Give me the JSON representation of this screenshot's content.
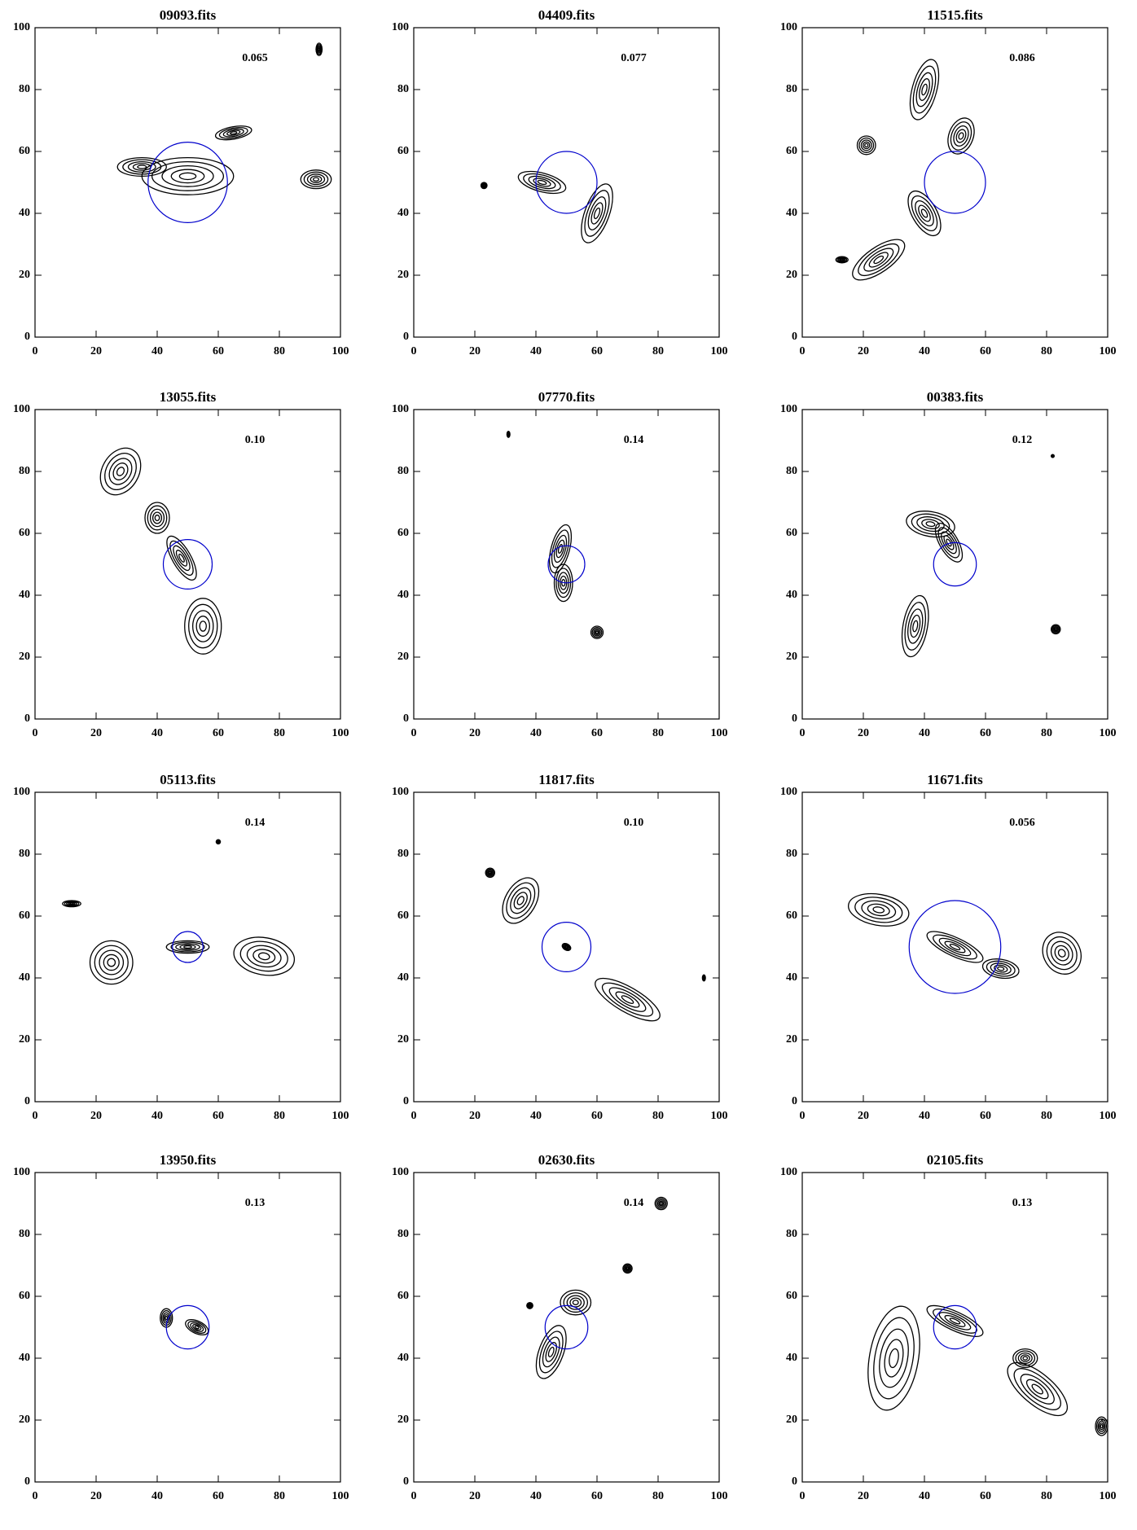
{
  "chart_data": [
    {
      "type": "contour",
      "title": "09093.fits",
      "annotation": "0.065",
      "xlim": [
        0,
        100
      ],
      "ylim": [
        0,
        100
      ],
      "xticks": [
        0,
        20,
        40,
        60,
        80,
        100
      ],
      "yticks": [
        0,
        20,
        40,
        60,
        80,
        100
      ],
      "circle": {
        "x": 50,
        "y": 50,
        "r": 13,
        "color": "#0000cc"
      },
      "components": [
        [
          50,
          52,
          15,
          6,
          0
        ],
        [
          35,
          55,
          8,
          3,
          0
        ],
        [
          65,
          66,
          6,
          2,
          10
        ],
        [
          92,
          51,
          5,
          3,
          0
        ],
        [
          93,
          93,
          1,
          2,
          0
        ]
      ]
    },
    {
      "type": "contour",
      "title": "04409.fits",
      "annotation": "0.077",
      "xlim": [
        0,
        100
      ],
      "ylim": [
        0,
        100
      ],
      "xticks": [
        0,
        20,
        40,
        60,
        80,
        100
      ],
      "yticks": [
        0,
        20,
        40,
        60,
        80,
        100
      ],
      "circle": {
        "x": 50,
        "y": 50,
        "r": 10,
        "color": "#0000cc"
      },
      "components": [
        [
          42,
          50,
          8,
          3,
          -15
        ],
        [
          60,
          40,
          4,
          10,
          -20
        ],
        [
          23,
          49,
          1,
          1,
          0
        ]
      ]
    },
    {
      "type": "contour",
      "title": "11515.fits",
      "annotation": "0.086",
      "xlim": [
        0,
        100
      ],
      "ylim": [
        0,
        100
      ],
      "xticks": [
        0,
        20,
        40,
        60,
        80,
        100
      ],
      "yticks": [
        0,
        20,
        40,
        60,
        80,
        100
      ],
      "circle": {
        "x": 50,
        "y": 50,
        "r": 10,
        "color": "#0000cc"
      },
      "components": [
        [
          40,
          80,
          4,
          10,
          -15
        ],
        [
          52,
          65,
          4,
          6,
          -20
        ],
        [
          40,
          40,
          4,
          8,
          30
        ],
        [
          25,
          25,
          10,
          4,
          35
        ],
        [
          21,
          62,
          3,
          3,
          0
        ],
        [
          13,
          25,
          2,
          1,
          0
        ]
      ]
    },
    {
      "type": "contour",
      "title": "13055.fits",
      "annotation": "0.10",
      "xlim": [
        0,
        100
      ],
      "ylim": [
        0,
        100
      ],
      "xticks": [
        0,
        20,
        40,
        60,
        80,
        100
      ],
      "yticks": [
        0,
        20,
        40,
        60,
        80,
        100
      ],
      "circle": {
        "x": 50,
        "y": 50,
        "r": 8,
        "color": "#0000cc"
      },
      "components": [
        [
          48,
          52,
          3,
          8,
          30
        ],
        [
          40,
          65,
          4,
          5,
          0
        ],
        [
          28,
          80,
          6,
          8,
          -30
        ],
        [
          55,
          30,
          6,
          9,
          0
        ]
      ]
    },
    {
      "type": "contour",
      "title": "07770.fits",
      "annotation": "0.14",
      "xlim": [
        0,
        100
      ],
      "ylim": [
        0,
        100
      ],
      "xticks": [
        0,
        20,
        40,
        60,
        80,
        100
      ],
      "yticks": [
        0,
        20,
        40,
        60,
        80,
        100
      ],
      "circle": {
        "x": 50,
        "y": 50,
        "r": 6,
        "color": "#0000cc"
      },
      "components": [
        [
          48,
          55,
          3,
          8,
          -15
        ],
        [
          49,
          44,
          3,
          6,
          0
        ],
        [
          60,
          28,
          2,
          2,
          0
        ],
        [
          31,
          92,
          0.5,
          1,
          0
        ]
      ]
    },
    {
      "type": "contour",
      "title": "00383.fits",
      "annotation": "0.12",
      "xlim": [
        0,
        100
      ],
      "ylim": [
        0,
        100
      ],
      "xticks": [
        0,
        20,
        40,
        60,
        80,
        100
      ],
      "yticks": [
        0,
        20,
        40,
        60,
        80,
        100
      ],
      "circle": {
        "x": 50,
        "y": 50,
        "r": 7,
        "color": "#0000cc"
      },
      "components": [
        [
          42,
          63,
          8,
          4,
          -10
        ],
        [
          48,
          57,
          3,
          7,
          30
        ],
        [
          37,
          30,
          4,
          10,
          -10
        ],
        [
          83,
          29,
          1.5,
          1.5,
          0
        ],
        [
          82,
          85,
          0.5,
          0.5,
          0
        ]
      ]
    },
    {
      "type": "contour",
      "title": "05113.fits",
      "annotation": "0.14",
      "xlim": [
        0,
        100
      ],
      "ylim": [
        0,
        100
      ],
      "xticks": [
        0,
        20,
        40,
        60,
        80,
        100
      ],
      "yticks": [
        0,
        20,
        40,
        60,
        80,
        100
      ],
      "circle": {
        "x": 50,
        "y": 50,
        "r": 5,
        "color": "#0000cc"
      },
      "components": [
        [
          25,
          45,
          7,
          7,
          0
        ],
        [
          50,
          50,
          7,
          2,
          0
        ],
        [
          75,
          47,
          10,
          6,
          -10
        ],
        [
          12,
          64,
          3,
          1,
          0
        ],
        [
          60,
          84,
          0.7,
          0.7,
          0
        ]
      ]
    },
    {
      "type": "contour",
      "title": "11817.fits",
      "annotation": "0.10",
      "xlim": [
        0,
        100
      ],
      "ylim": [
        0,
        100
      ],
      "xticks": [
        0,
        20,
        40,
        60,
        80,
        100
      ],
      "yticks": [
        0,
        20,
        40,
        60,
        80,
        100
      ],
      "circle": {
        "x": 50,
        "y": 50,
        "r": 8,
        "color": "#0000cc"
      },
      "components": [
        [
          50,
          50,
          1.5,
          1,
          -30
        ],
        [
          35,
          65,
          5,
          8,
          -30
        ],
        [
          70,
          33,
          12,
          4,
          -30
        ],
        [
          25,
          74,
          1.5,
          1.5,
          0
        ],
        [
          95,
          40,
          0.5,
          1,
          0
        ]
      ]
    },
    {
      "type": "contour",
      "title": "11671.fits",
      "annotation": "0.056",
      "xlim": [
        0,
        100
      ],
      "ylim": [
        0,
        100
      ],
      "xticks": [
        0,
        20,
        40,
        60,
        80,
        100
      ],
      "yticks": [
        0,
        20,
        40,
        60,
        80,
        100
      ],
      "circle": {
        "x": 50,
        "y": 50,
        "r": 15,
        "color": "#0000cc"
      },
      "components": [
        [
          25,
          62,
          10,
          5,
          -10
        ],
        [
          50,
          50,
          10,
          3,
          -25
        ],
        [
          65,
          43,
          6,
          3,
          -10
        ],
        [
          85,
          48,
          6,
          7,
          30
        ]
      ]
    },
    {
      "type": "contour",
      "title": "13950.fits",
      "annotation": "0.13",
      "xlim": [
        0,
        100
      ],
      "ylim": [
        0,
        100
      ],
      "xticks": [
        0,
        20,
        40,
        60,
        80,
        100
      ],
      "yticks": [
        0,
        20,
        40,
        60,
        80,
        100
      ],
      "circle": {
        "x": 50,
        "y": 50,
        "r": 7,
        "color": "#0000cc"
      },
      "components": [
        [
          43,
          53,
          2,
          3,
          0
        ],
        [
          53,
          50,
          4,
          2,
          -25
        ]
      ]
    },
    {
      "type": "contour",
      "title": "02630.fits",
      "annotation": "0.14",
      "xlim": [
        0,
        100
      ],
      "ylim": [
        0,
        100
      ],
      "xticks": [
        0,
        20,
        40,
        60,
        80,
        100
      ],
      "yticks": [
        0,
        20,
        40,
        60,
        80,
        100
      ],
      "circle": {
        "x": 50,
        "y": 50,
        "r": 7,
        "color": "#0000cc"
      },
      "components": [
        [
          53,
          58,
          5,
          4,
          0
        ],
        [
          45,
          42,
          4,
          9,
          -20
        ],
        [
          81,
          90,
          2,
          2,
          0
        ],
        [
          70,
          69,
          1.5,
          1.5,
          0
        ],
        [
          38,
          57,
          1,
          1,
          0
        ]
      ]
    },
    {
      "type": "contour",
      "title": "02105.fits",
      "annotation": "0.13",
      "xlim": [
        0,
        100
      ],
      "ylim": [
        0,
        100
      ],
      "xticks": [
        0,
        20,
        40,
        60,
        80,
        100
      ],
      "yticks": [
        0,
        20,
        40,
        60,
        80,
        100
      ],
      "circle": {
        "x": 50,
        "y": 50,
        "r": 7,
        "color": "#0000cc"
      },
      "components": [
        [
          30,
          40,
          8,
          17,
          -10
        ],
        [
          50,
          52,
          10,
          3,
          -25
        ],
        [
          77,
          30,
          12,
          5,
          -40
        ],
        [
          73,
          40,
          4,
          3,
          0
        ],
        [
          98,
          18,
          2,
          3,
          0
        ]
      ]
    }
  ]
}
